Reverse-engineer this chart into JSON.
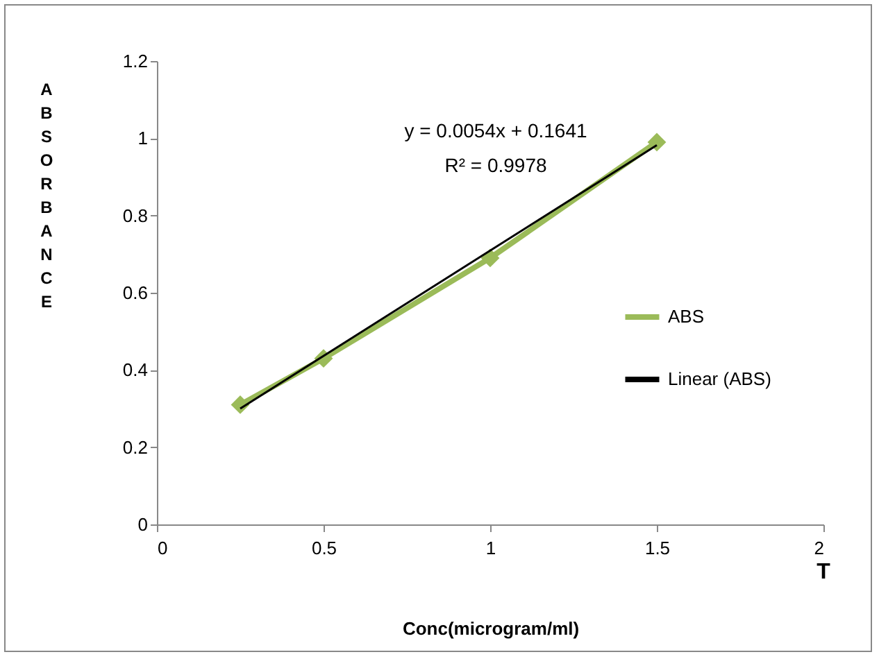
{
  "chart_data": {
    "type": "line",
    "xlabel": "Conc(microgram/ml)",
    "ylabel": "ABSORBANCE",
    "annotations": [
      "y = 0.0054x + 0.1641",
      "R² = 0.9978",
      "T"
    ],
    "x": [
      0.25,
      0.5,
      1,
      1.5
    ],
    "series": [
      {
        "name": "ABS",
        "color": "#9bbb59",
        "values": [
          0.31,
          0.43,
          0.69,
          0.99
        ]
      },
      {
        "name": "Linear (ABS)",
        "type": "line",
        "marker": "none",
        "color": "#000000",
        "x": [
          0.25,
          1.5
        ],
        "values": [
          0.3,
          0.982
        ]
      }
    ],
    "xlim": [
      0,
      2
    ],
    "xticks": [
      0,
      0.5,
      1,
      1.5,
      2
    ],
    "ylim": [
      0,
      1.2
    ],
    "yticks": [
      0,
      0.2,
      0.4,
      0.6,
      0.8,
      1,
      1.2
    ],
    "grid": false,
    "legend": "right",
    "marker": "diamond",
    "line_style": "solid"
  }
}
